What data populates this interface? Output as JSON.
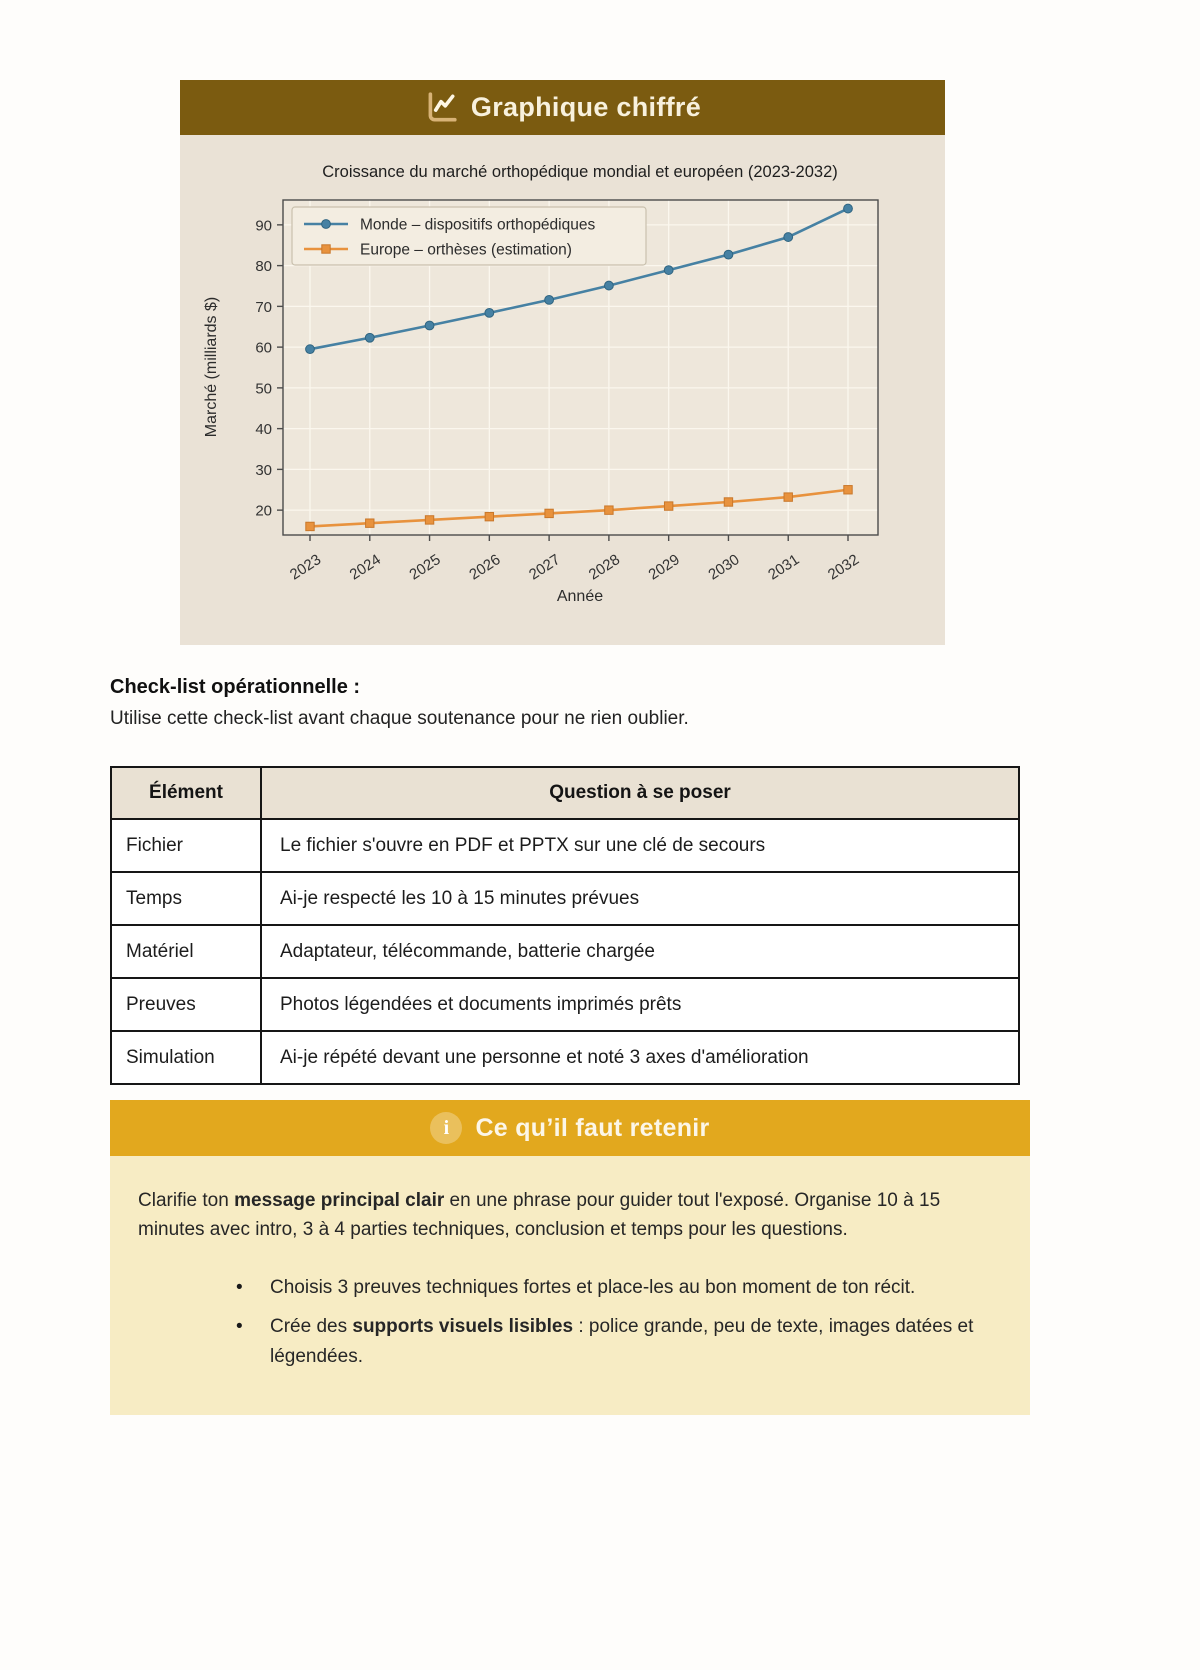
{
  "chart_card": {
    "header_label": "Graphique chiffré",
    "header_bg": "#7b5b10",
    "body_bg": "#eae2d6"
  },
  "chart_data": {
    "type": "line",
    "title": "Croissance du marché orthopédique mondial et européen (2023-2032)",
    "xlabel": "Année",
    "ylabel": "Marché (milliards $)",
    "x": [
      "2023",
      "2024",
      "2025",
      "2026",
      "2027",
      "2028",
      "2029",
      "2030",
      "2031",
      "2032"
    ],
    "series": [
      {
        "name": "Monde – dispositifs orthopédiques",
        "marker": "circle",
        "color": "#4681a3",
        "edge": "#2f6480",
        "values": [
          59.5,
          62.3,
          65.3,
          68.4,
          71.6,
          75.1,
          78.9,
          82.7,
          87.0,
          94.0
        ]
      },
      {
        "name": "Europe – orthèses (estimation)",
        "marker": "square",
        "color": "#e8923d",
        "edge": "#c9772a",
        "values": [
          16.0,
          16.8,
          17.6,
          18.4,
          19.2,
          20.0,
          21.0,
          22.0,
          23.2,
          25.0
        ]
      }
    ],
    "ylim": [
      13.9,
      96.1
    ],
    "yticks": [
      20,
      30,
      40,
      50,
      60,
      70,
      80,
      90
    ],
    "grid": true,
    "legend_position": "upper left"
  },
  "checklist": {
    "heading": "Check-list opérationnelle :",
    "intro": "Utilise cette check-list avant chaque soutenance pour ne rien oublier.",
    "table": {
      "columns": [
        "Élément",
        "Question à se poser"
      ],
      "rows": [
        [
          "Fichier",
          "Le fichier s'ouvre en PDF et PPTX sur une clé de secours"
        ],
        [
          "Temps",
          "Ai-je respecté les 10 à 15 minutes prévues"
        ],
        [
          "Matériel",
          "Adaptateur, télécommande, batterie chargée"
        ],
        [
          "Preuves",
          "Photos légendées et documents imprimés prêts"
        ],
        [
          "Simulation",
          "Ai-je répété devant une personne et noté 3 axes d'amélioration"
        ]
      ]
    }
  },
  "callout": {
    "title": "Ce qu’il faut retenir",
    "header_bg": "#e2a81e",
    "body_bg": "#f7ecc4",
    "paragraph": {
      "pre": "Clarifie ton ",
      "bold": "message principal clair",
      "post": " en une phrase pour guider tout l'exposé. Organise 10 à 15 minutes avec intro, 3 à 4 parties techniques, conclusion et temps pour les questions."
    },
    "bullets": [
      {
        "pre": "Choisis 3 preuves techniques fortes et place-les au bon moment de ton récit.",
        "bold": "",
        "post": ""
      },
      {
        "pre": "Crée des ",
        "bold": "supports visuels lisibles",
        "post": " : police grande, peu de texte, images datées et légendées."
      }
    ]
  }
}
